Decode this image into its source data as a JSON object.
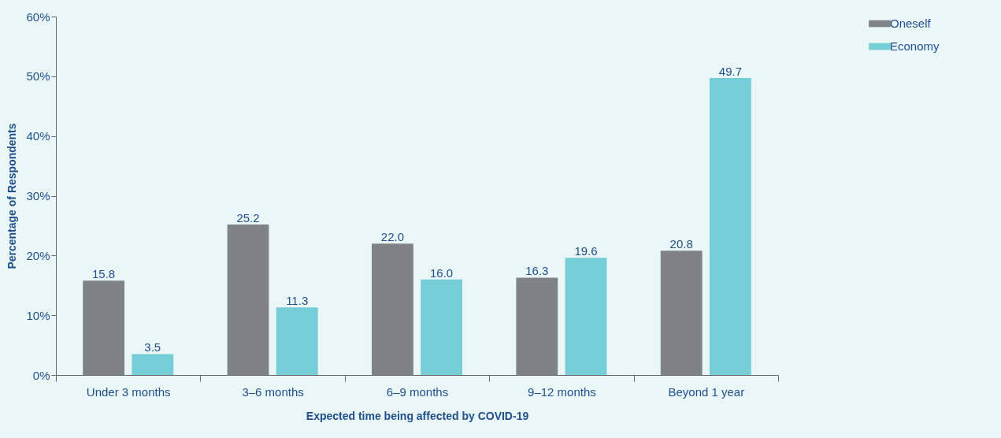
{
  "chart_data": {
    "type": "bar",
    "xlabel": "Expected time being affected by COVID-19",
    "ylabel": "Percentage of Respondents",
    "categories": [
      "Under 3 months",
      "3–6 months",
      "6–9 months",
      "9–12 months",
      "Beyond 1 year"
    ],
    "series": [
      {
        "name": "Oneself",
        "color": "#808386",
        "values": [
          15.8,
          25.2,
          22.0,
          16.3,
          20.8
        ],
        "value_labels": [
          "15.8",
          "25.2",
          "22.0",
          "16.3",
          "20.8"
        ]
      },
      {
        "name": "Economy",
        "color": "#75cdd8",
        "values": [
          3.5,
          11.3,
          16.0,
          19.6,
          49.7
        ],
        "value_labels": [
          "3.5",
          "11.3",
          "16.0",
          "19.6",
          "49.7"
        ]
      }
    ],
    "ylim": [
      0,
      60
    ],
    "yticks": [
      {
        "value": 0,
        "label": "0%"
      },
      {
        "value": 10,
        "label": "10%"
      },
      {
        "value": 20,
        "label": "20%"
      },
      {
        "value": 30,
        "label": "30%"
      },
      {
        "value": 40,
        "label": "40%"
      },
      {
        "value": 50,
        "label": "50%"
      },
      {
        "value": 60,
        "label": "60%"
      }
    ],
    "grid": false,
    "legend": "top right"
  }
}
